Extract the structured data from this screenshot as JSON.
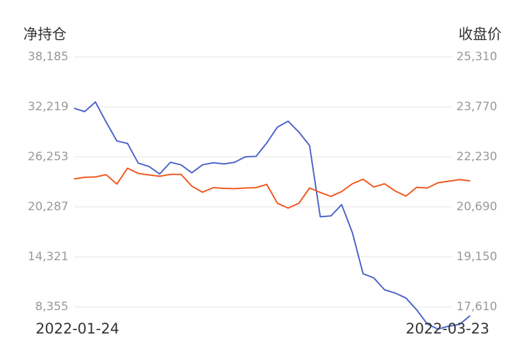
{
  "chart_data": {
    "type": "line",
    "left_axis_title": "净持仓",
    "right_axis_title": "收盘价",
    "x_start_label": "2022-01-24",
    "x_end_label": "2022-03-23",
    "left_ticks": [
      "38,185",
      "32,219",
      "26,253",
      "20,287",
      "14,321",
      "8,355"
    ],
    "right_ticks": [
      "25,310",
      "23,770",
      "22,230",
      "20,690",
      "19,150",
      "17,610"
    ],
    "left_ylim": [
      8355,
      38185
    ],
    "right_ylim": [
      17610,
      25310
    ],
    "grid": true,
    "series": [
      {
        "axis": "left",
        "color": "#4b63c8",
        "values": [
          32050,
          31650,
          32800,
          30400,
          28150,
          27850,
          25500,
          25100,
          24200,
          25600,
          25300,
          24350,
          25300,
          25550,
          25400,
          25600,
          26250,
          26300,
          27900,
          29800,
          30500,
          29200,
          27600,
          19100,
          19200,
          20550,
          17200,
          12300,
          11800,
          10400,
          10000,
          9400,
          8000,
          6300,
          5700,
          6050,
          6250,
          7300
        ]
      },
      {
        "axis": "right",
        "color": "#f2561d",
        "values": [
          21550,
          21600,
          21610,
          21680,
          21390,
          21880,
          21720,
          21670,
          21630,
          21690,
          21690,
          21330,
          21140,
          21280,
          21260,
          21250,
          21270,
          21280,
          21380,
          20800,
          20650,
          20800,
          21270,
          21130,
          21010,
          21160,
          21400,
          21540,
          21300,
          21400,
          21180,
          21020,
          21290,
          21270,
          21430,
          21480,
          21530,
          21490
        ]
      }
    ]
  }
}
